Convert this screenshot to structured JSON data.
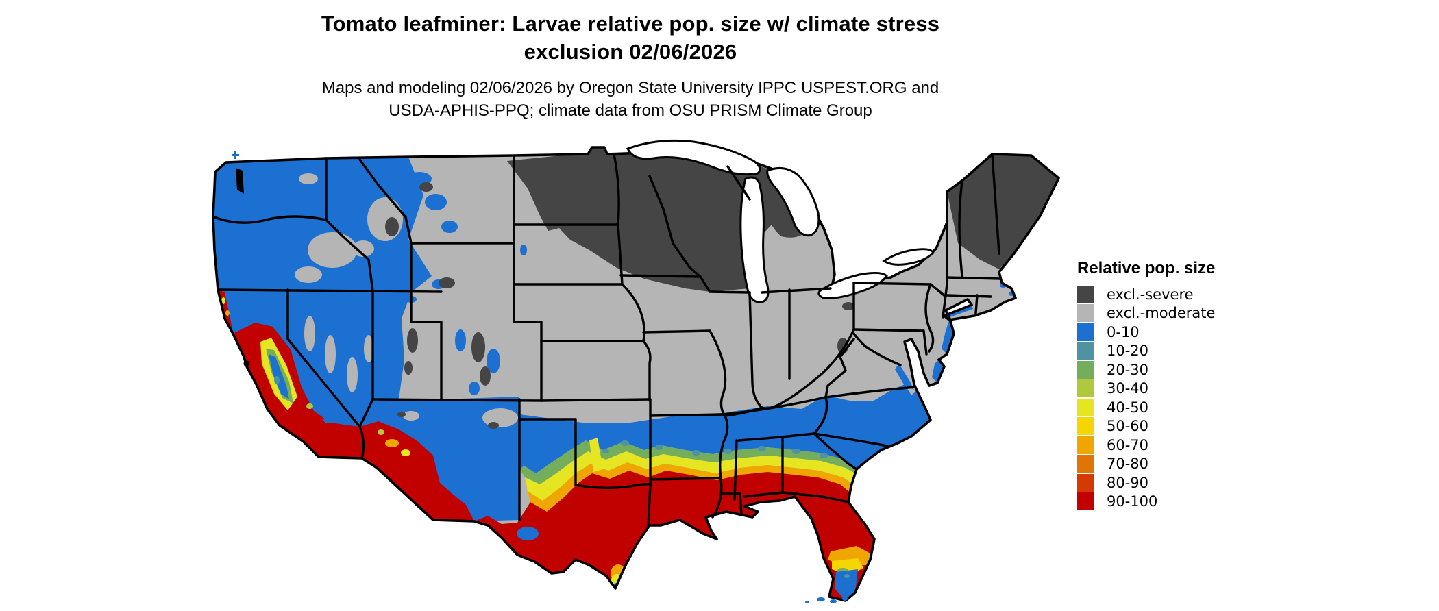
{
  "title": {
    "line1": "Tomato leafminer: Larvae relative pop. size w/ climate stress",
    "line2": "exclusion 02/06/2026"
  },
  "subtitle": {
    "line1": "Maps and modeling 02/06/2026 by Oregon State University IPPC USPEST.ORG and",
    "line2": "USDA-APHIS-PPQ; climate data from OSU PRISM Climate Group"
  },
  "legend": {
    "title": "Relative pop. size",
    "items": [
      {
        "key": "sev",
        "label": "excl.-severe",
        "color": "#454545"
      },
      {
        "key": "mod",
        "label": "excl.-moderate",
        "color": "#b5b5b5"
      },
      {
        "key": "b0",
        "label": "0-10",
        "color": "#1b70d1"
      },
      {
        "key": "b10",
        "label": "10-20",
        "color": "#4f93a3"
      },
      {
        "key": "g20",
        "label": "20-30",
        "color": "#74ad5c"
      },
      {
        "key": "g30",
        "label": "30-40",
        "color": "#b0c83b"
      },
      {
        "key": "y40",
        "label": "40-50",
        "color": "#e5e621"
      },
      {
        "key": "y50",
        "label": "50-60",
        "color": "#f5d600"
      },
      {
        "key": "o60",
        "label": "60-70",
        "color": "#efa600"
      },
      {
        "key": "o70",
        "label": "70-80",
        "color": "#e07404"
      },
      {
        "key": "r80",
        "label": "80-90",
        "color": "#d43b02"
      },
      {
        "key": "r90",
        "label": "90-100",
        "color": "#c10000"
      }
    ]
  },
  "map": {
    "area": "Contiguous United States choropleth raster with state borders",
    "zones": [
      {
        "class": "excl.-severe",
        "where": "North Dakota, Minnesota, Wisconsin, Upper and northern Lower Michigan, northeastern Montana/South Dakota, Adirondacks, Vermont, New Hampshire, Maine, high Rockies"
      },
      {
        "class": "excl.-moderate",
        "where": "Central Plains, Midwest, Ohio Valley, interior Northeast, Wyoming, Colorado, Kansas, Missouri, eastern Oregon and Great Basin ridges"
      },
      {
        "class": "0-10",
        "where": "Washington, Oregon, Nevada, Idaho, northern California, northern Arizona, New Mexico, Oklahoma, north Texas, Arkansas, Tennessee, Carolinas, southeastern Virginia and mid-Atlantic coast"
      },
      {
        "class": "10-60 transition",
        "where": "Bands across central Texas and the northern Gulf states into coastal South Carolina; California Central Valley fringe; south Florida"
      },
      {
        "class": "60-100",
        "where": "South Texas, Louisiana, southern Mississippi/Alabama/Georgia, Florida, southern Arizona and southwest New Mexico, California Central Valley rim and southern coast"
      }
    ]
  }
}
